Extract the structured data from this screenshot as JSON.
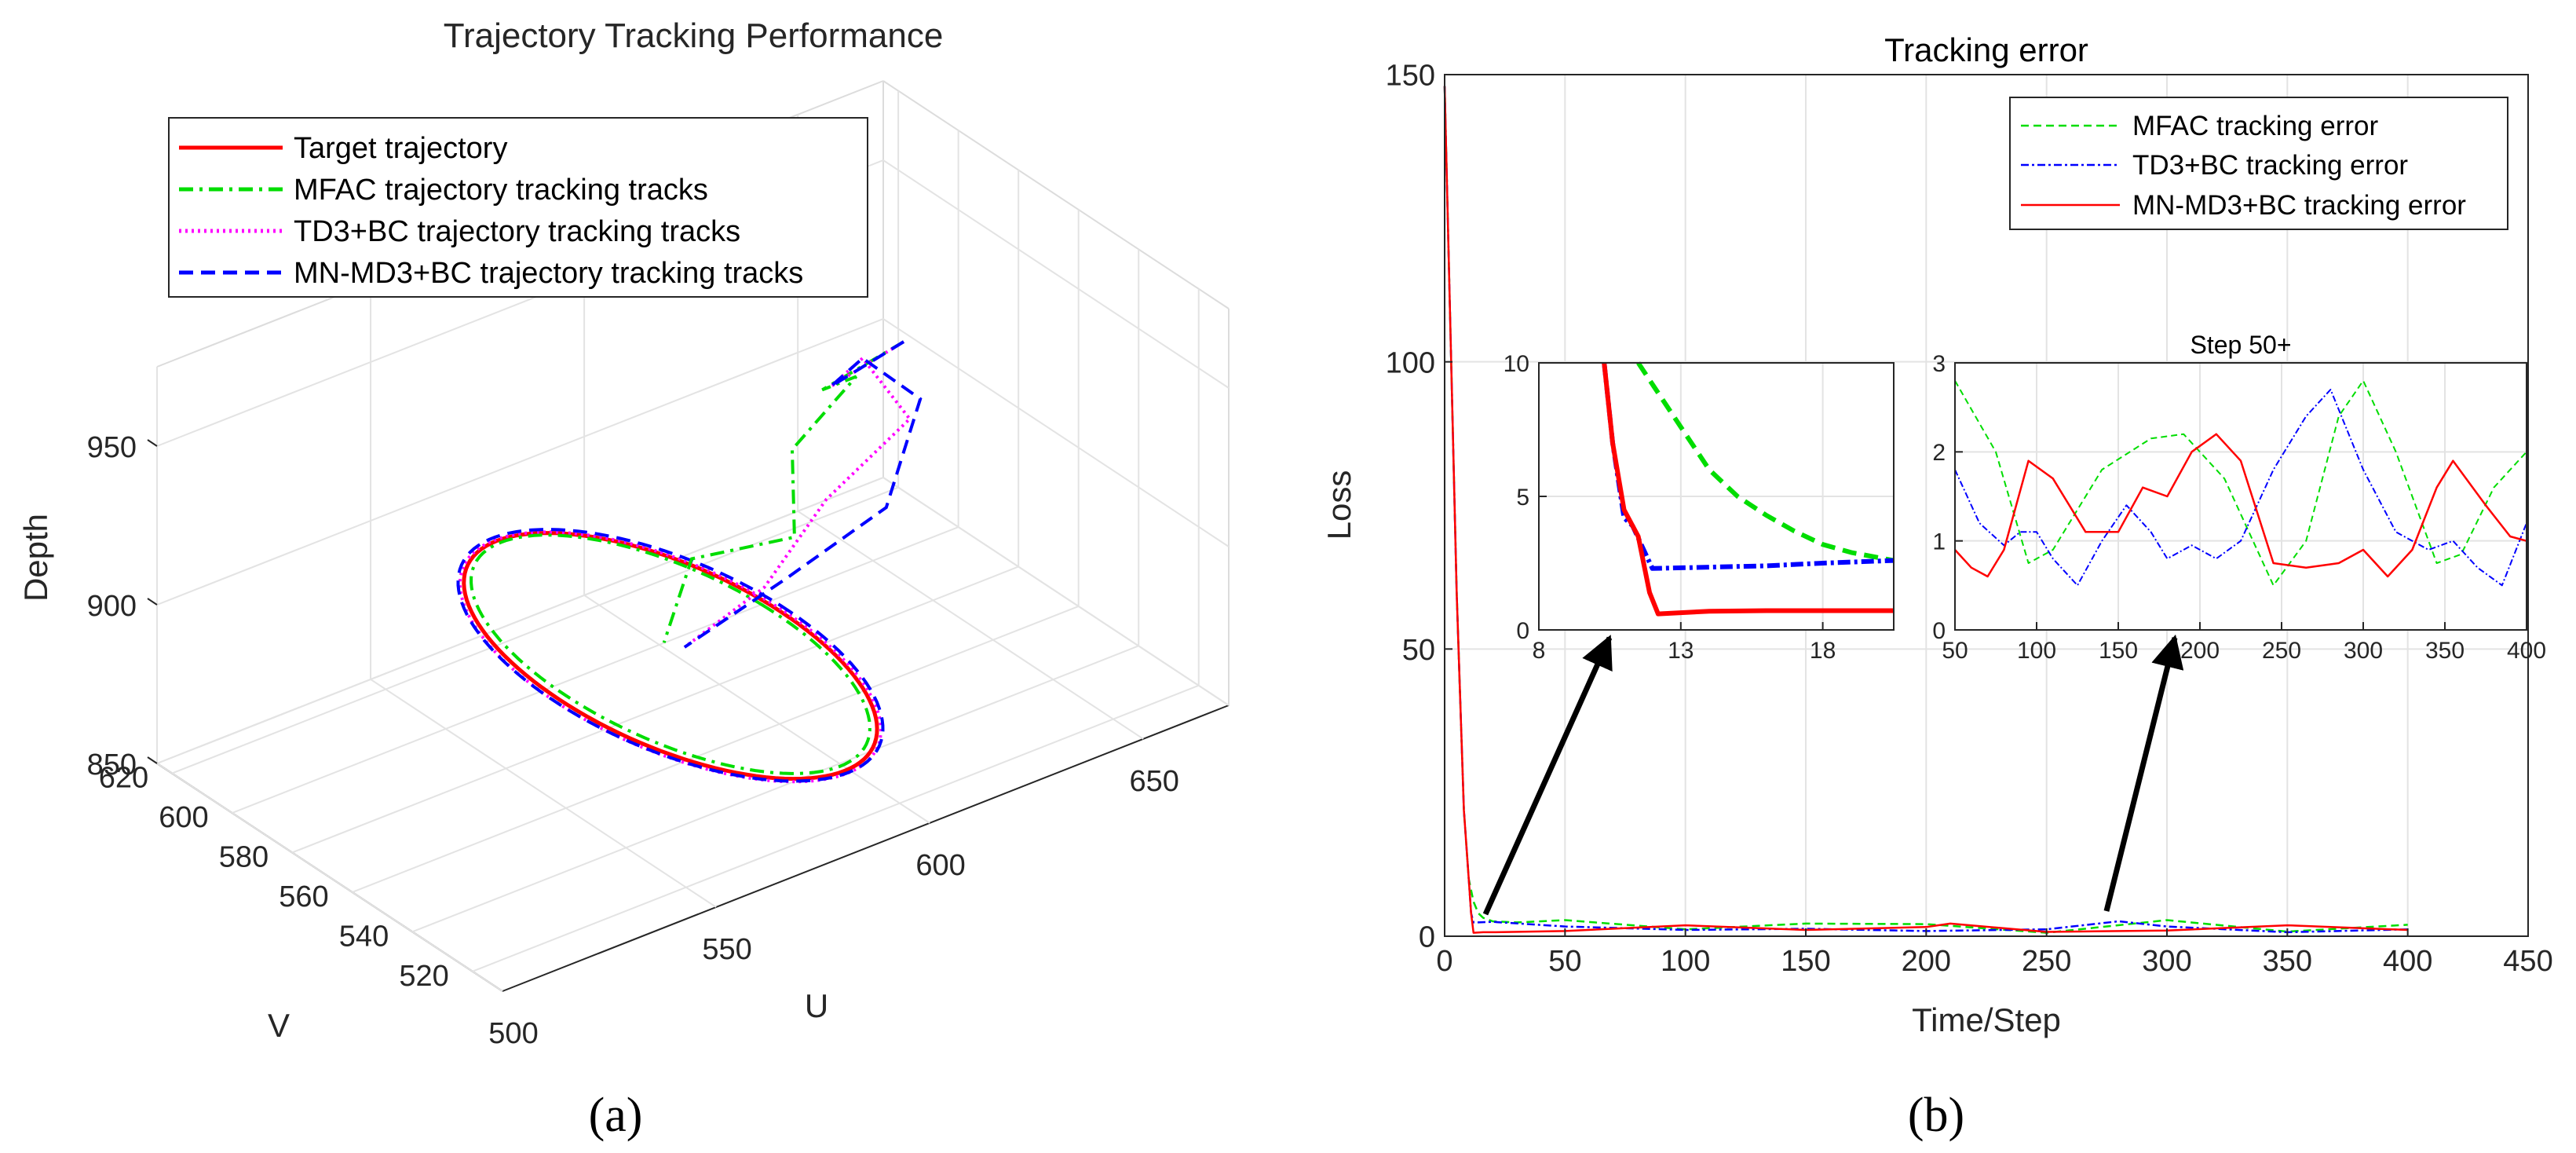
{
  "chart_data": [
    {
      "panel": "(a)",
      "type": "line3d",
      "title": "Trajectory Tracking Performance",
      "xlabel": "U",
      "ylabel": "V",
      "zlabel": "Depth",
      "xlim": [
        500,
        670
      ],
      "ylim": [
        510,
        625
      ],
      "zlim": [
        850,
        975
      ],
      "xticks": [
        "500",
        "550",
        "600",
        "650"
      ],
      "yticks": [
        "520",
        "540",
        "560",
        "580",
        "600",
        "620"
      ],
      "zticks": [
        "850",
        "900",
        "950"
      ],
      "legend": [
        "Target trajectory",
        "MFAC trajectory tracking tracks",
        "TD3+BC trajectory tracking tracks",
        "MN-MD3+BC trajectory tracking tracks"
      ],
      "legend_position": "top-left",
      "ellipse": {
        "center_u": 578,
        "center_v": 565,
        "radius_u": 26,
        "radius_v": 58,
        "depth": 880
      },
      "approach_path": {
        "mfac": [
          [
            615,
            540,
            975
          ],
          [
            610,
            560,
            950
          ],
          [
            625,
            570,
            940
          ],
          [
            610,
            570,
            925
          ],
          [
            600,
            555,
            912
          ],
          [
            590,
            575,
            898
          ],
          [
            580,
            570,
            880
          ]
        ],
        "td3bc": [
          [
            615,
            540,
            975
          ],
          [
            612,
            560,
            950
          ],
          [
            630,
            575,
            940
          ],
          [
            634,
            565,
            925
          ],
          [
            618,
            570,
            905
          ],
          [
            600,
            565,
            890
          ],
          [
            582,
            566,
            880
          ]
        ],
        "mnmd3": [
          [
            615,
            540,
            975
          ],
          [
            612,
            560,
            950
          ],
          [
            630,
            575,
            940
          ],
          [
            640,
            570,
            925
          ],
          [
            625,
            560,
            905
          ],
          [
            605,
            565,
            890
          ],
          [
            582,
            566,
            880
          ]
        ]
      },
      "colors": {
        "target": "#ff0000",
        "mfac": "#00dd00",
        "td3bc": "#ff00ff",
        "mnmd3": "#0000ff"
      }
    },
    {
      "panel": "(b)",
      "type": "line",
      "title": "Tracking error",
      "xlabel": "Time/Step",
      "ylabel": "Loss",
      "xlim": [
        0,
        450
      ],
      "ylim": [
        0,
        150
      ],
      "xticks": [
        "0",
        "50",
        "100",
        "150",
        "200",
        "250",
        "300",
        "350",
        "400",
        "450"
      ],
      "yticks": [
        "0",
        "50",
        "100",
        "150"
      ],
      "legend": [
        "MFAC tracking error",
        "TD3+BC tracking error",
        "MN-MD3+BC tracking error"
      ],
      "legend_position": "top-right",
      "series": [
        {
          "name": "MFAC tracking error",
          "x": [
            0,
            5,
            8,
            10,
            12,
            14,
            16,
            20,
            30,
            50,
            100,
            150,
            200,
            250,
            300,
            350,
            400
          ],
          "y": [
            148,
            60,
            22,
            10,
            6,
            4,
            3.2,
            2.6,
            2.4,
            2.8,
            1.2,
            2.2,
            2.1,
            0.6,
            2.8,
            0.8,
            2.0
          ]
        },
        {
          "name": "TD3+BC tracking error",
          "x": [
            0,
            5,
            8,
            10,
            11,
            12,
            14,
            16,
            20,
            50,
            100,
            150,
            200,
            250,
            280,
            300,
            350,
            400
          ],
          "y": [
            148,
            60,
            22,
            10,
            4,
            2.4,
            2.4,
            2.45,
            2.5,
            1.7,
            1.1,
            1.3,
            0.9,
            1.2,
            2.6,
            1.7,
            0.7,
            1.2
          ]
        },
        {
          "name": "MN-MD3+BC tracking error",
          "x": [
            0,
            5,
            8,
            10,
            11,
            12,
            14,
            16,
            20,
            50,
            100,
            150,
            200,
            210,
            250,
            300,
            350,
            400
          ],
          "y": [
            148,
            60,
            22,
            10,
            4,
            0.6,
            0.65,
            0.7,
            0.7,
            0.9,
            1.9,
            1.1,
            1.6,
            2.2,
            0.75,
            1.0,
            1.9,
            1.1
          ]
        }
      ],
      "insets": [
        {
          "title": "",
          "xlim": [
            8,
            20.5
          ],
          "ylim": [
            0,
            10
          ],
          "xticks": [
            "8",
            "13",
            "18"
          ],
          "yticks": [
            "0",
            "5",
            "10"
          ],
          "series": [
            {
              "name": "MFAC",
              "x": [
                11.5,
                12,
                13,
                14,
                15,
                16,
                17,
                18,
                19,
                20.5
              ],
              "y": [
                10,
                9.2,
                7.6,
                6.0,
                5.0,
                4.3,
                3.7,
                3.2,
                2.9,
                2.6
              ]
            },
            {
              "name": "TD3+BC",
              "x": [
                10.3,
                10.6,
                11,
                11.3,
                12,
                14,
                16,
                18,
                20.5
              ],
              "y": [
                10,
                7,
                4.2,
                3.9,
                2.3,
                2.35,
                2.4,
                2.5,
                2.6
              ]
            },
            {
              "name": "MN-MD3+BC",
              "x": [
                10.3,
                10.6,
                11,
                11.5,
                11.9,
                12.2,
                14,
                16,
                18,
                20.5
              ],
              "y": [
                10,
                7,
                4.5,
                3.5,
                1.4,
                0.6,
                0.7,
                0.72,
                0.72,
                0.72
              ]
            }
          ]
        },
        {
          "title": "Step 50+",
          "xlim": [
            50,
            400
          ],
          "ylim": [
            0,
            3
          ],
          "xticks": [
            "50",
            "100",
            "150",
            "200",
            "250",
            "300",
            "350",
            "400"
          ],
          "yticks": [
            "0",
            "1",
            "2",
            "3"
          ],
          "series": [
            {
              "name": "MFAC",
              "x": [
                50,
                75,
                95,
                110,
                140,
                170,
                190,
                215,
                245,
                265,
                285,
                300,
                320,
                345,
                360,
                380,
                400
              ],
              "y": [
                2.8,
                2.0,
                0.75,
                0.9,
                1.8,
                2.15,
                2.2,
                1.7,
                0.5,
                1.0,
                2.4,
                2.8,
                2.0,
                0.75,
                0.85,
                1.6,
                2.0
              ]
            },
            {
              "name": "TD3+BC",
              "x": [
                50,
                65,
                80,
                90,
                100,
                110,
                125,
                140,
                155,
                170,
                180,
                195,
                210,
                225,
                245,
                265,
                280,
                300,
                320,
                340,
                355,
                370,
                385,
                400
              ],
              "y": [
                1.8,
                1.2,
                0.95,
                1.1,
                1.1,
                0.8,
                0.5,
                1.0,
                1.4,
                1.1,
                0.8,
                0.95,
                0.8,
                1.0,
                1.8,
                2.4,
                2.7,
                1.8,
                1.1,
                0.9,
                1.0,
                0.7,
                0.5,
                1.2
              ]
            },
            {
              "name": "MN-MD3+BC",
              "x": [
                50,
                60,
                70,
                80,
                95,
                110,
                130,
                150,
                165,
                180,
                195,
                210,
                225,
                245,
                265,
                285,
                300,
                315,
                330,
                345,
                355,
                375,
                390,
                400
              ],
              "y": [
                0.9,
                0.7,
                0.6,
                0.9,
                1.9,
                1.7,
                1.1,
                1.1,
                1.6,
                1.5,
                2.0,
                2.2,
                1.9,
                0.75,
                0.7,
                0.75,
                0.9,
                0.6,
                0.9,
                1.6,
                1.9,
                1.4,
                1.05,
                1.0
              ]
            }
          ]
        }
      ],
      "colors": {
        "mfac": "#00dd00",
        "td3bc": "#0000ff",
        "mnmd3": "#ff0000"
      }
    }
  ],
  "captions": {
    "a": "(a)",
    "b": "(b)"
  }
}
